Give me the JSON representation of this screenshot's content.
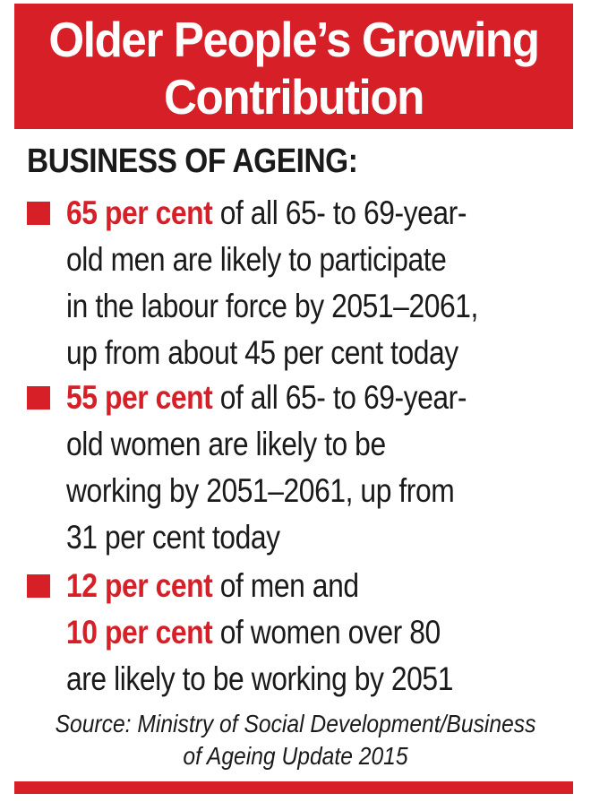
{
  "header": {
    "title_line1": "Older People’s Growing",
    "title_line2": "Contribution"
  },
  "subheading": "BUSINESS OF AGEING:",
  "bullets": [
    {
      "lines": [
        {
          "highlight": "65 per cent",
          "text": " of all 65- to 69-year-"
        },
        {
          "highlight": "",
          "text": "old men are likely to participate"
        },
        {
          "highlight": "",
          "text": "in the labour force by 2051–2061,"
        },
        {
          "highlight": "",
          "text": "up from about 45 per cent today"
        }
      ]
    },
    {
      "lines": [
        {
          "highlight": "55 per cent",
          "text": " of all 65- to 69-year-"
        },
        {
          "highlight": "",
          "text": "old women are likely to be"
        },
        {
          "highlight": "",
          "text": "working by 2051–2061, up from"
        },
        {
          "highlight": "",
          "text": "31 per cent today"
        }
      ]
    },
    {
      "lines": [
        {
          "highlight": "12 per cent",
          "text": " of men and"
        },
        {
          "highlight": "10 per cent",
          "text": " of women over 80"
        },
        {
          "highlight": "",
          "text": "are likely to be working by 2051"
        }
      ]
    }
  ],
  "source": {
    "line1": "Source: Ministry of Social Development/Business",
    "line2": "of Ageing Update 2015"
  },
  "colors": {
    "accent": "#d71f28",
    "text": "#1a1a1a"
  }
}
